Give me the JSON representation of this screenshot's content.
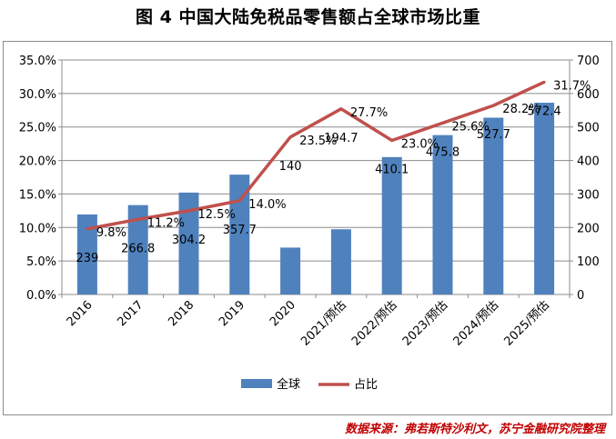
{
  "chart_data": {
    "type": "bar",
    "title": "图 4  中国大陆免税品零售额占全球市场比重",
    "categories": [
      "2016",
      "2017",
      "2018",
      "2019",
      "2020",
      "2021/预估",
      "2022/预估",
      "2023/预估",
      "2024/预估",
      "2025/预估"
    ],
    "series": [
      {
        "name": "全球",
        "type": "bar",
        "axis": "right",
        "color": "#4f81bd",
        "values": [
          239,
          266.8,
          304.2,
          357.7,
          140,
          194.7,
          410.1,
          475.8,
          527.7,
          572.4
        ],
        "labels": [
          "239",
          "266.8",
          "304.2",
          "357.7",
          "140",
          "194.7",
          "410.1",
          "475.8",
          "527.7",
          "572.4"
        ]
      },
      {
        "name": "占比",
        "type": "line",
        "axis": "left",
        "color": "#c0504d",
        "values": [
          9.8,
          11.2,
          12.5,
          14.0,
          23.5,
          27.7,
          23.0,
          25.6,
          28.2,
          31.7
        ],
        "labels": [
          "9.8%",
          "11.2%",
          "12.5%",
          "14.0%",
          "23.5%",
          "27.7%",
          "23.0%",
          "25.6%",
          "28.2%",
          "31.7%"
        ]
      }
    ],
    "y_left": {
      "min": 0,
      "max": 35,
      "ticks": [
        "0.0%",
        "5.0%",
        "10.0%",
        "15.0%",
        "20.0%",
        "25.0%",
        "30.0%",
        "35.0%"
      ]
    },
    "y_right": {
      "min": 0,
      "max": 700,
      "ticks": [
        "0",
        "100",
        "200",
        "300",
        "400",
        "500",
        "600",
        "700"
      ]
    },
    "legend": {
      "position": "bottom",
      "items": [
        "全球",
        "占比"
      ]
    },
    "grid": true
  },
  "source": "数据来源：弗若斯特沙利文，苏宁金融研究院整理"
}
